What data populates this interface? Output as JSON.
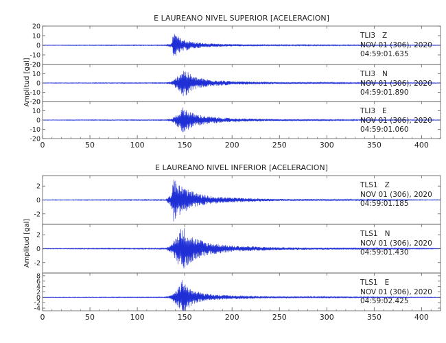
{
  "chart_data": [
    {
      "type": "line",
      "title": "E LAUREANO NIVEL SUPERIOR [ACELERACION]",
      "ylabel": "Amplitud [gal]",
      "xlim": [
        0,
        420
      ],
      "x_ticks": [
        0,
        50,
        100,
        150,
        200,
        250,
        300,
        350,
        400
      ],
      "series": [
        {
          "channel": "TLI3 Z",
          "date": "NOV 01 (306), 2020",
          "time": "04:59:01.635",
          "ylim": [
            -20,
            20
          ],
          "y_ticks": [
            20,
            10,
            0,
            -10,
            -20
          ],
          "envelope": [
            [
              0,
              0.3
            ],
            [
              130,
              0.5
            ],
            [
              137,
              3
            ],
            [
              138,
              18
            ],
            [
              140,
              12
            ],
            [
              145,
              8
            ],
            [
              150,
              6
            ],
            [
              160,
              3.5
            ],
            [
              175,
              2
            ],
            [
              200,
              1.2
            ],
            [
              250,
              0.7
            ],
            [
              330,
              0.5
            ],
            [
              420,
              0.3
            ]
          ]
        },
        {
          "channel": "TLI3 N",
          "date": "NOV 01 (306), 2020",
          "time": "04:59:01.890",
          "ylim": [
            -20,
            20
          ],
          "y_ticks": [
            20,
            10,
            0,
            -10,
            -20
          ],
          "envelope": [
            [
              0,
              0.3
            ],
            [
              130,
              0.5
            ],
            [
              137,
              2
            ],
            [
              140,
              5
            ],
            [
              144,
              10
            ],
            [
              148,
              16
            ],
            [
              150,
              15
            ],
            [
              153,
              12
            ],
            [
              160,
              7
            ],
            [
              175,
              4
            ],
            [
              200,
              2
            ],
            [
              250,
              1
            ],
            [
              330,
              0.6
            ],
            [
              420,
              0.3
            ]
          ]
        },
        {
          "channel": "TLI3 E",
          "date": "NOV 01 (306), 2020",
          "time": "04:59:01.060",
          "ylim": [
            -20,
            20
          ],
          "y_ticks": [
            20,
            10,
            0,
            -10,
            -20
          ],
          "envelope": [
            [
              0,
              0.3
            ],
            [
              130,
              0.5
            ],
            [
              137,
              2
            ],
            [
              140,
              5
            ],
            [
              145,
              10
            ],
            [
              149,
              15
            ],
            [
              152,
              12
            ],
            [
              160,
              7
            ],
            [
              175,
              4
            ],
            [
              200,
              2
            ],
            [
              250,
              1
            ],
            [
              330,
              0.6
            ],
            [
              420,
              0.3
            ]
          ]
        }
      ]
    },
    {
      "type": "line",
      "title": "E LAUREANO NIVEL INFERIOR [ACELERACION]",
      "ylabel": "Amplitud [gal]",
      "xlim": [
        0,
        420
      ],
      "x_ticks": [
        0,
        50,
        100,
        150,
        200,
        250,
        300,
        350,
        400
      ],
      "series": [
        {
          "channel": "TLS1 Z",
          "date": "NOV 01 (306), 2020",
          "time": "04:59:01.185",
          "ylim": [
            -3.5,
            3.5
          ],
          "y_ticks": [
            2,
            0,
            -2
          ],
          "envelope": [
            [
              0,
              0.05
            ],
            [
              130,
              0.08
            ],
            [
              136,
              1
            ],
            [
              138,
              3.2
            ],
            [
              141,
              2.8
            ],
            [
              145,
              2.2
            ],
            [
              150,
              1.8
            ],
            [
              160,
              1.1
            ],
            [
              175,
              0.6
            ],
            [
              200,
              0.35
            ],
            [
              250,
              0.15
            ],
            [
              330,
              0.1
            ],
            [
              420,
              0.05
            ]
          ]
        },
        {
          "channel": "TLS1 N",
          "date": "NOV 01 (306), 2020",
          "time": "04:59:01.430",
          "ylim": [
            -3.5,
            3.5
          ],
          "y_ticks": [
            2,
            0,
            -2
          ],
          "envelope": [
            [
              0,
              0.05
            ],
            [
              130,
              0.08
            ],
            [
              137,
              0.8
            ],
            [
              140,
              1.6
            ],
            [
              145,
              2.8
            ],
            [
              148,
              3.3
            ],
            [
              152,
              2.6
            ],
            [
              160,
              1.6
            ],
            [
              175,
              0.9
            ],
            [
              200,
              0.45
            ],
            [
              250,
              0.2
            ],
            [
              330,
              0.12
            ],
            [
              420,
              0.05
            ]
          ]
        },
        {
          "channel": "TLS1 E",
          "date": "NOV 01 (306), 2020",
          "time": "04:59:02.425",
          "ylim": [
            -5,
            9
          ],
          "y_ticks": [
            8,
            6,
            4,
            2,
            0,
            -2,
            -4
          ],
          "envelope": [
            [
              0,
              0.1
            ],
            [
              130,
              0.15
            ],
            [
              137,
              1
            ],
            [
              141,
              3
            ],
            [
              145,
              4.5
            ],
            [
              148,
              8
            ],
            [
              151,
              5
            ],
            [
              160,
              2.5
            ],
            [
              175,
              1.2
            ],
            [
              200,
              0.7
            ],
            [
              250,
              0.3
            ],
            [
              330,
              0.2
            ],
            [
              420,
              0.1
            ]
          ]
        }
      ]
    }
  ]
}
